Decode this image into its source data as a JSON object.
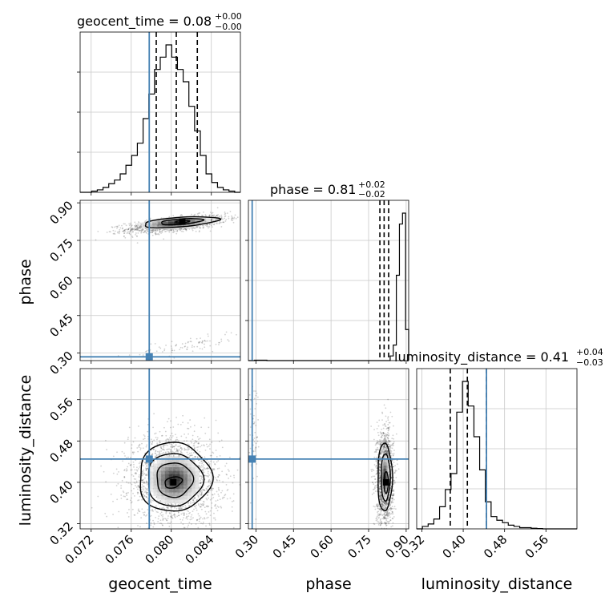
{
  "chart_data": {
    "type": "corner",
    "parameters": [
      "geocent_time",
      "phase",
      "luminosity_distance"
    ],
    "truth_color": "#4682b4",
    "truths": {
      "geocent_time": 0.0778,
      "phase": 0.285,
      "luminosity_distance": 0.445
    },
    "panels": {
      "geocent_time": {
        "title_main": "geocent_time = 0.08",
        "title_sup": "+0.00",
        "title_sub": "−0.00",
        "range": [
          0.0709,
          0.0869
        ],
        "ticks": [
          "0.072",
          "0.076",
          "0.080",
          "0.084"
        ],
        "tick_values": [
          0.072,
          0.076,
          0.08,
          0.084
        ],
        "quantiles": [
          0.0785,
          0.0805,
          0.0826
        ],
        "hist": [
          0,
          0,
          1,
          2,
          4,
          7,
          10,
          15,
          22,
          30,
          40,
          60,
          80,
          100,
          110,
          120,
          110,
          100,
          90,
          70,
          50,
          30,
          15,
          8,
          4,
          2,
          1,
          0
        ]
      },
      "phase": {
        "title_main": "phase = 0.81",
        "title_sup": "+0.02",
        "title_sub": "−0.02",
        "range": [
          0.27,
          0.91
        ],
        "ticks": [
          "0.30",
          "0.45",
          "0.60",
          "0.75",
          "0.90"
        ],
        "tick_values": [
          0.3,
          0.45,
          0.6,
          0.75,
          0.9
        ],
        "quantiles": [
          0.795,
          0.812,
          0.83
        ],
        "hist": [
          0,
          0,
          0.3,
          0.3,
          0.3,
          0.3,
          0,
          0,
          0,
          0,
          0,
          0,
          0,
          0,
          0,
          0,
          0,
          0,
          0,
          0,
          0,
          0,
          0,
          0,
          0,
          0,
          0,
          0,
          0,
          0,
          0,
          0,
          0,
          0,
          0,
          0,
          0,
          0,
          0,
          0,
          0,
          0,
          0,
          0,
          0,
          0,
          3,
          10,
          55,
          88,
          95,
          20
        ]
      },
      "luminosity_distance": {
        "title_main": "luminosity_distance = 0.41",
        "title_sup": "+0.04",
        "title_sub": "−0.03",
        "range": [
          0.31,
          0.62
        ],
        "ticks": [
          "0.32",
          "0.40",
          "0.48",
          "0.56"
        ],
        "tick_values": [
          0.32,
          0.4,
          0.48,
          0.56
        ],
        "quantiles": [
          0.375,
          0.408,
          0.445
        ],
        "hist": [
          0,
          2,
          4,
          8,
          18,
          32,
          45,
          95,
          120,
          100,
          75,
          48,
          22,
          10,
          7,
          5,
          3,
          2,
          1,
          1,
          0.5,
          0.3,
          0,
          0,
          0,
          0,
          0,
          0
        ]
      }
    },
    "joint": {
      "phase_vs_geocent_time": {
        "main_center": [
          0.0805,
          0.815
        ],
        "main_spread": [
          0.0025,
          0.035
        ],
        "tail_center": [
          0.0815,
          0.33
        ],
        "mode": [
          0.0811,
          0.825
        ]
      },
      "luminosity_distance_vs_geocent_time": {
        "center": [
          0.0803,
          0.405
        ],
        "spread": [
          0.0019,
          0.035
        ],
        "mode": [
          0.0802,
          0.4
        ]
      },
      "luminosity_distance_vs_phase": {
        "center": [
          0.815,
          0.41
        ],
        "spread": [
          0.017,
          0.035
        ],
        "tail_center": [
          0.29,
          0.5
        ],
        "mode": [
          0.82,
          0.4
        ]
      }
    }
  }
}
